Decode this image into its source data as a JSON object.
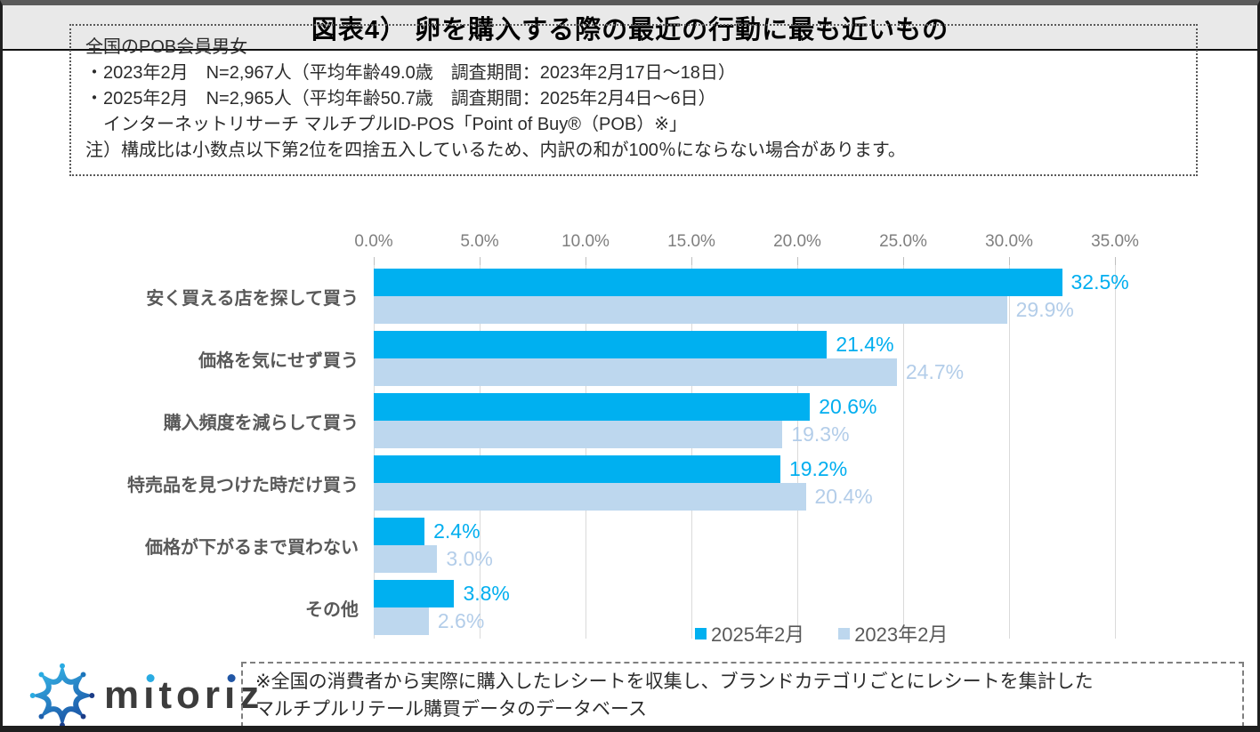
{
  "title": "図表4） 卵を購入する際の最近の行動に最も近いもの",
  "info_box": {
    "lines": [
      "全国のPOB会員男女",
      "・2023年2月　N=2,967人（平均年齢49.0歳　調査期間：2023年2月17日～18日）",
      "・2025年2月　N=2,965人（平均年齢50.7歳　調査期間：2025年2月4日～6日）",
      "　インターネットリサーチ マルチプルID-POS「Point of Buy®（POB）※」",
      "注）構成比は小数点以下第2位を四捨五入しているため、内訳の和が100％にならない場合があります。"
    ]
  },
  "chart_data": {
    "type": "bar",
    "orientation": "horizontal",
    "title": "卵を購入する際の最近の行動に最も近いもの",
    "categories": [
      "安く買える店を探して買う",
      "価格を気にせず買う",
      "購入頻度を減らして買う",
      "特売品を見つけた時だけ買う",
      "価格が下がるまで買わない",
      "その他"
    ],
    "series": [
      {
        "name": "2025年2月",
        "color": "#00B0F0",
        "label_color": "#00AEEF",
        "values": [
          32.5,
          21.4,
          20.6,
          19.2,
          2.4,
          3.8
        ]
      },
      {
        "name": "2023年2月",
        "color": "#BDD7EE",
        "label_color": "#B3CDE9",
        "values": [
          29.9,
          24.7,
          19.3,
          20.4,
          3.0,
          2.6
        ]
      }
    ],
    "x_ticks": [
      "0.0%",
      "5.0%",
      "10.0%",
      "15.0%",
      "20.0%",
      "25.0%",
      "30.0%",
      "35.0%"
    ],
    "xlim": [
      0,
      35
    ],
    "grid": true,
    "legend_position": "bottom",
    "value_label_suffix": "%"
  },
  "footer": {
    "logo_text": "mitoriz",
    "logo_colors": {
      "light_blue": "#29ABE2",
      "dark_blue": "#1E5FAD",
      "text": "#3C3C3C"
    },
    "note_lines": [
      "※全国の消費者から実際に購入したレシートを収集し、ブランドカテゴリごとにレシートを集計した",
      "マルチプルリテール購買データのデータベース"
    ]
  }
}
